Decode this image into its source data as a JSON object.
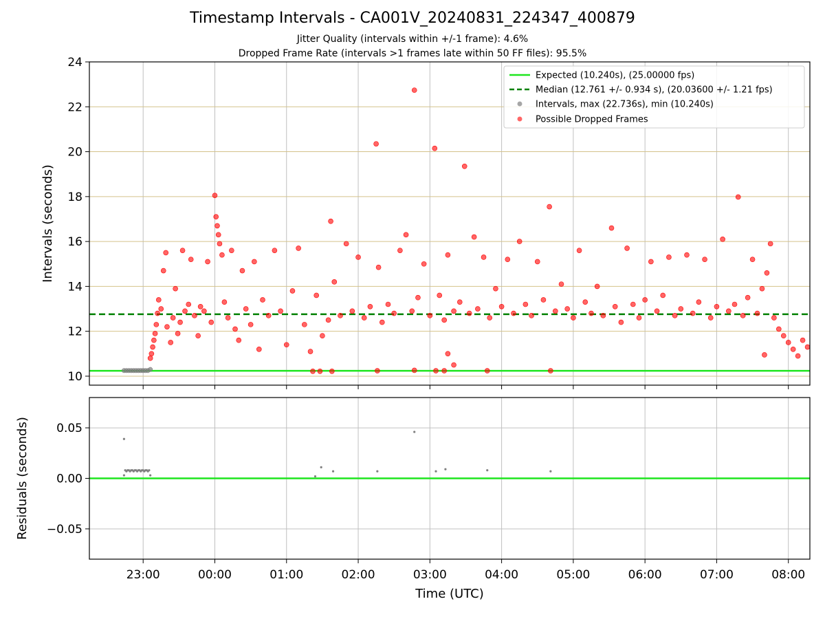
{
  "title": "Timestamp Intervals - CA001V_20240831_224347_400879",
  "subtitle1": "Jitter Quality (intervals within +/-1 frame): 4.6%",
  "subtitle2": "Dropped Frame Rate (intervals >1 frames late within 50 FF files): 95.5%",
  "colors": {
    "expected": "#1ee61e",
    "median": "#008000",
    "intervals": "#808080",
    "dropped": "#ff0000",
    "hgrid": "#d4c28a",
    "vgrid": "#c0c0c0"
  },
  "chart_data": [
    {
      "type": "scatter",
      "ylabel": "Intervals (seconds)",
      "xlabel": "",
      "ylim": [
        9.6,
        24
      ],
      "xlim_hours": [
        22.25,
        8.3
      ],
      "x_axis_kind": "time-of-day (UTC), wraps past midnight",
      "y_ticks": [
        "10",
        "12",
        "14",
        "16",
        "18",
        "20",
        "22",
        "24"
      ],
      "y_tick_values": [
        10,
        12,
        14,
        16,
        18,
        20,
        22,
        24
      ],
      "x_ticks": [
        "23:00",
        "00:00",
        "01:00",
        "02:00",
        "03:00",
        "04:00",
        "05:00",
        "06:00",
        "07:00",
        "08:00"
      ],
      "x_tick_values": [
        "23:00",
        "00:00",
        "01:00",
        "02:00",
        "03:00",
        "04:00",
        "05:00",
        "06:00",
        "07:00",
        "08:00"
      ],
      "grid": "on",
      "legend_position": "top-right",
      "legend": [
        "Expected (10.240s), (25.00000 fps)",
        "Median (12.761 +/- 0.934 s), (20.03600 +/- 1.21 fps)",
        "Intervals, max (22.736s), min (10.240s)",
        "Possible Dropped Frames"
      ],
      "expected_value": 10.24,
      "median_value": 12.761,
      "series": [
        {
          "name": "Intervals, max (22.736s), min (10.240s)",
          "points": [
            [
              "22:44",
              10.25
            ],
            [
              "22:46",
              10.25
            ],
            [
              "22:48",
              10.25
            ],
            [
              "22:50",
              10.25
            ],
            [
              "22:52",
              10.25
            ],
            [
              "22:54",
              10.25
            ],
            [
              "22:56",
              10.25
            ],
            [
              "22:58",
              10.25
            ],
            [
              "23:00",
              10.25
            ],
            [
              "23:02",
              10.25
            ],
            [
              "23:04",
              10.25
            ],
            [
              "23:06",
              10.3
            ]
          ]
        },
        {
          "name": "Possible Dropped Frames",
          "points": [
            [
              "23:06",
              10.8
            ],
            [
              "23:07",
              11.0
            ],
            [
              "23:08",
              11.3
            ],
            [
              "23:09",
              11.6
            ],
            [
              "23:10",
              11.9
            ],
            [
              "23:11",
              12.3
            ],
            [
              "23:12",
              12.8
            ],
            [
              "23:13",
              13.4
            ],
            [
              "23:15",
              13.0
            ],
            [
              "23:17",
              14.7
            ],
            [
              "23:19",
              15.5
            ],
            [
              "23:20",
              12.2
            ],
            [
              "23:23",
              11.5
            ],
            [
              "23:25",
              12.6
            ],
            [
              "23:27",
              13.9
            ],
            [
              "23:29",
              11.9
            ],
            [
              "23:31",
              12.4
            ],
            [
              "23:33",
              15.6
            ],
            [
              "23:35",
              12.9
            ],
            [
              "23:38",
              13.2
            ],
            [
              "23:40",
              15.2
            ],
            [
              "23:43",
              12.7
            ],
            [
              "23:46",
              11.8
            ],
            [
              "23:48",
              13.1
            ],
            [
              "23:51",
              12.9
            ],
            [
              "23:54",
              15.1
            ],
            [
              "23:57",
              12.4
            ],
            [
              "00:00",
              18.05
            ],
            [
              "00:01",
              17.1
            ],
            [
              "00:02",
              16.7
            ],
            [
              "00:03",
              16.3
            ],
            [
              "00:04",
              15.9
            ],
            [
              "00:06",
              15.4
            ],
            [
              "00:08",
              13.3
            ],
            [
              "00:11",
              12.6
            ],
            [
              "00:14",
              15.6
            ],
            [
              "00:17",
              12.1
            ],
            [
              "00:20",
              11.6
            ],
            [
              "00:23",
              14.7
            ],
            [
              "00:26",
              13.0
            ],
            [
              "00:30",
              12.3
            ],
            [
              "00:33",
              15.1
            ],
            [
              "00:37",
              11.2
            ],
            [
              "00:40",
              13.4
            ],
            [
              "00:45",
              12.7
            ],
            [
              "00:50",
              15.6
            ],
            [
              "00:55",
              12.9
            ],
            [
              "01:00",
              11.4
            ],
            [
              "01:05",
              13.8
            ],
            [
              "01:10",
              15.7
            ],
            [
              "01:15",
              12.3
            ],
            [
              "01:20",
              11.1
            ],
            [
              "01:25",
              13.6
            ],
            [
              "01:30",
              11.8
            ],
            [
              "01:35",
              12.5
            ],
            [
              "01:37",
              16.9
            ],
            [
              "01:40",
              14.2
            ],
            [
              "01:45",
              12.7
            ],
            [
              "01:50",
              15.9
            ],
            [
              "01:55",
              12.9
            ],
            [
              "02:00",
              15.3
            ],
            [
              "02:05",
              12.6
            ],
            [
              "02:10",
              13.1
            ],
            [
              "02:15",
              20.35
            ],
            [
              "02:17",
              14.85
            ],
            [
              "02:20",
              12.4
            ],
            [
              "02:25",
              13.2
            ],
            [
              "02:30",
              12.8
            ],
            [
              "02:35",
              15.6
            ],
            [
              "02:40",
              16.3
            ],
            [
              "02:45",
              12.9
            ],
            [
              "02:47",
              22.74
            ],
            [
              "02:50",
              13.5
            ],
            [
              "02:55",
              15.0
            ],
            [
              "03:00",
              12.7
            ],
            [
              "03:04",
              20.15
            ],
            [
              "03:08",
              13.6
            ],
            [
              "03:12",
              12.5
            ],
            [
              "03:15",
              15.4
            ],
            [
              "03:20",
              12.9
            ],
            [
              "03:25",
              13.3
            ],
            [
              "03:29",
              19.35
            ],
            [
              "03:33",
              12.8
            ],
            [
              "03:37",
              16.2
            ],
            [
              "03:40",
              13.0
            ],
            [
              "03:45",
              15.3
            ],
            [
              "03:50",
              12.6
            ],
            [
              "03:55",
              13.9
            ],
            [
              "04:00",
              13.1
            ],
            [
              "04:05",
              15.2
            ],
            [
              "04:10",
              12.8
            ],
            [
              "04:15",
              16.0
            ],
            [
              "04:20",
              13.2
            ],
            [
              "04:25",
              12.7
            ],
            [
              "04:30",
              15.1
            ],
            [
              "04:35",
              13.4
            ],
            [
              "04:40",
              17.55
            ],
            [
              "04:45",
              12.9
            ],
            [
              "04:50",
              14.1
            ],
            [
              "04:55",
              13.0
            ],
            [
              "05:00",
              12.6
            ],
            [
              "05:05",
              15.6
            ],
            [
              "05:10",
              13.3
            ],
            [
              "05:15",
              12.8
            ],
            [
              "05:20",
              14.0
            ],
            [
              "05:25",
              12.7
            ],
            [
              "05:32",
              16.6
            ],
            [
              "05:35",
              13.1
            ],
            [
              "05:40",
              12.4
            ],
            [
              "05:45",
              15.7
            ],
            [
              "05:50",
              13.2
            ],
            [
              "05:55",
              12.6
            ],
            [
              "06:00",
              13.4
            ],
            [
              "06:05",
              15.1
            ],
            [
              "06:10",
              12.9
            ],
            [
              "06:15",
              13.6
            ],
            [
              "06:20",
              15.3
            ],
            [
              "06:25",
              12.7
            ],
            [
              "06:30",
              13.0
            ],
            [
              "06:35",
              15.4
            ],
            [
              "06:40",
              12.8
            ],
            [
              "06:45",
              13.3
            ],
            [
              "06:50",
              15.2
            ],
            [
              "06:55",
              12.6
            ],
            [
              "07:00",
              13.1
            ],
            [
              "07:05",
              16.1
            ],
            [
              "07:10",
              12.9
            ],
            [
              "07:15",
              13.2
            ],
            [
              "07:18",
              17.98
            ],
            [
              "07:22",
              12.7
            ],
            [
              "07:26",
              13.5
            ],
            [
              "07:30",
              15.2
            ],
            [
              "07:34",
              12.8
            ],
            [
              "07:38",
              13.9
            ],
            [
              "07:42",
              14.6
            ],
            [
              "07:45",
              15.9
            ],
            [
              "07:48",
              12.6
            ],
            [
              "07:52",
              12.1
            ],
            [
              "07:56",
              11.8
            ],
            [
              "08:00",
              11.5
            ],
            [
              "08:04",
              11.2
            ],
            [
              "08:08",
              10.9
            ],
            [
              "08:12",
              11.6
            ],
            [
              "08:16",
              11.3
            ],
            [
              "01:22",
              10.22
            ],
            [
              "01:28",
              10.22
            ],
            [
              "01:38",
              10.22
            ],
            [
              "02:16",
              10.24
            ],
            [
              "02:47",
              10.26
            ],
            [
              "03:05",
              10.24
            ],
            [
              "03:12",
              10.24
            ],
            [
              "03:20",
              10.5
            ],
            [
              "03:48",
              10.24
            ],
            [
              "04:41",
              10.24
            ],
            [
              "03:15",
              11.0
            ],
            [
              "07:40",
              10.95
            ]
          ]
        }
      ]
    },
    {
      "type": "scatter",
      "ylabel": "Residuals (seconds)",
      "xlabel": "Time (UTC)",
      "ylim": [
        -0.08,
        0.08
      ],
      "y_ticks": [
        "−0.05",
        "0.00",
        "0.05"
      ],
      "y_tick_values": [
        -0.05,
        0.0,
        0.05
      ],
      "x_ticks": [
        "23:00",
        "00:00",
        "01:00",
        "02:00",
        "03:00",
        "04:00",
        "05:00",
        "06:00",
        "07:00",
        "08:00"
      ],
      "x_tick_values": [
        "23:00",
        "00:00",
        "01:00",
        "02:00",
        "03:00",
        "04:00",
        "05:00",
        "06:00",
        "07:00",
        "08:00"
      ],
      "grid": "on",
      "zero_line": 0.0,
      "series": [
        {
          "name": "",
          "points": [
            [
              "22:44",
              0.039
            ],
            [
              "22:44",
              0.003
            ],
            [
              "22:45",
              0.008
            ],
            [
              "22:46",
              0.007
            ],
            [
              "22:47",
              0.008
            ],
            [
              "22:48",
              0.008
            ],
            [
              "22:49",
              0.007
            ],
            [
              "22:50",
              0.008
            ],
            [
              "22:51",
              0.008
            ],
            [
              "22:52",
              0.007
            ],
            [
              "22:53",
              0.008
            ],
            [
              "22:54",
              0.008
            ],
            [
              "22:55",
              0.007
            ],
            [
              "22:56",
              0.008
            ],
            [
              "22:57",
              0.008
            ],
            [
              "22:58",
              0.007
            ],
            [
              "22:59",
              0.008
            ],
            [
              "23:00",
              0.008
            ],
            [
              "23:01",
              0.007
            ],
            [
              "23:02",
              0.008
            ],
            [
              "23:03",
              0.008
            ],
            [
              "23:04",
              0.007
            ],
            [
              "23:05",
              0.008
            ],
            [
              "23:06",
              0.003
            ],
            [
              "01:24",
              0.002
            ],
            [
              "01:29",
              0.011
            ],
            [
              "01:39",
              0.007
            ],
            [
              "02:16",
              0.007
            ],
            [
              "02:47",
              0.046
            ],
            [
              "03:05",
              0.007
            ],
            [
              "03:13",
              0.009
            ],
            [
              "03:48",
              0.008
            ],
            [
              "04:41",
              0.007
            ]
          ]
        }
      ]
    }
  ]
}
